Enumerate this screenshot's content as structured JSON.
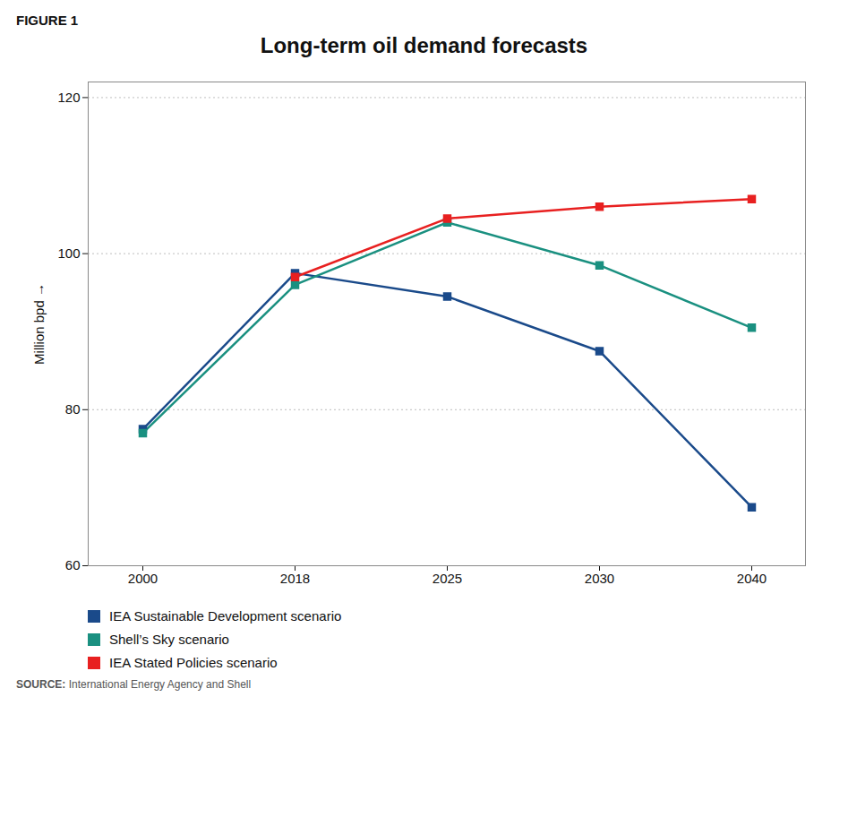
{
  "chart_data": {
    "type": "line",
    "title": "Long-term oil demand forecasts",
    "annotations": [
      "FIGURE 1",
      "SOURCE: International Energy Agency and Shell"
    ],
    "ylabel": "Million bpd",
    "categories": [
      "2000",
      "2018",
      "2025",
      "2030",
      "2040"
    ],
    "series": [
      {
        "name": "IEA Sustainable Development scenario",
        "color": "#1a4a8a",
        "values": [
          77.5,
          97.5,
          94.5,
          87.5,
          67.5
        ]
      },
      {
        "name": "Shell’s Sky scenario",
        "color": "#1a9080",
        "values": [
          77.0,
          96.0,
          104.0,
          98.5,
          90.5
        ]
      },
      {
        "name": "IEA Stated Policies scenario",
        "color": "#e82020",
        "values": [
          null,
          97.0,
          104.5,
          106.0,
          107.0
        ]
      }
    ],
    "ylim": [
      60,
      122
    ],
    "yticks": [
      60,
      80,
      100,
      120
    ],
    "grid": true,
    "legend": "bottom",
    "marker": "square"
  }
}
